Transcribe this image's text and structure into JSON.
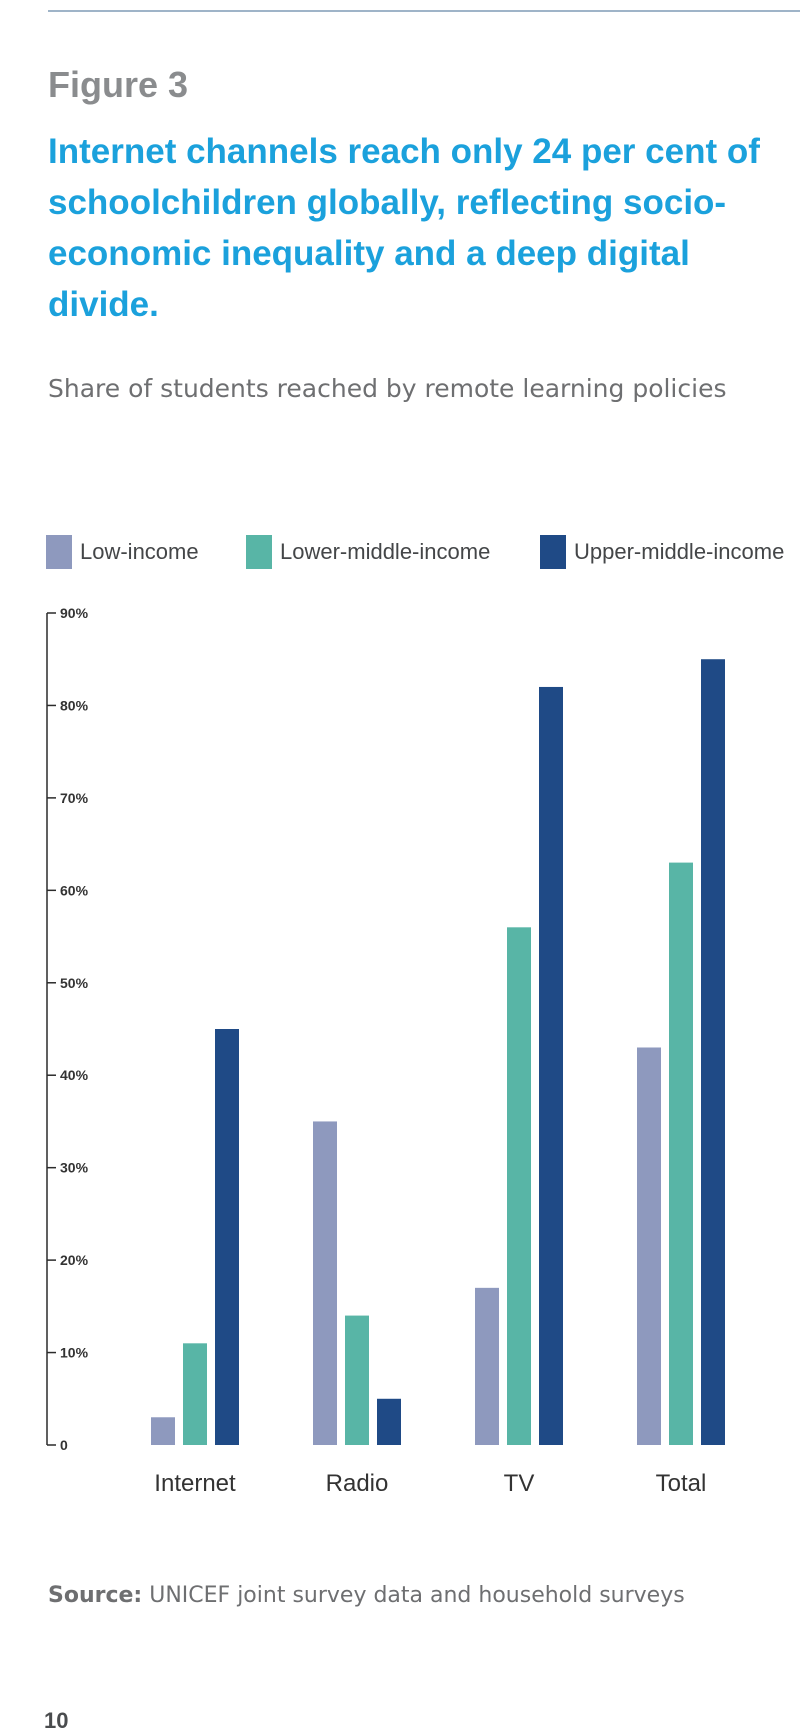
{
  "figure_label": "Figure 3",
  "headline": "Internet channels reach only 24 per cent of schoolchildren globally, reflecting socio-economic inequality and a deep digital divide.",
  "source": {
    "label": "Source:",
    "text": "UNICEF joint survey data and household surveys"
  },
  "page_number": "10",
  "chart_data": {
    "type": "bar",
    "title": "Share of students reached by remote learning policies",
    "xlabel": "",
    "ylabel": "",
    "categories": [
      "Internet",
      "Radio",
      "TV",
      "Total"
    ],
    "series": [
      {
        "name": "Low-income",
        "color": "#8e99be",
        "values": [
          3,
          35,
          17,
          43
        ]
      },
      {
        "name": "Lower-middle-income",
        "color": "#58b5a6",
        "values": [
          11,
          14,
          56,
          63
        ]
      },
      {
        "name": "Upper-middle-income",
        "color": "#1f4a86",
        "values": [
          45,
          5,
          82,
          85
        ]
      }
    ],
    "ylim": [
      0,
      90
    ],
    "yticks": [
      0,
      10,
      20,
      30,
      40,
      50,
      60,
      70,
      80,
      90
    ],
    "ytick_labels": [
      "0",
      "10%",
      "20%",
      "30%",
      "40%",
      "50%",
      "60%",
      "70%",
      "80%",
      "90%"
    ],
    "grid": false,
    "legend_position": "top"
  }
}
